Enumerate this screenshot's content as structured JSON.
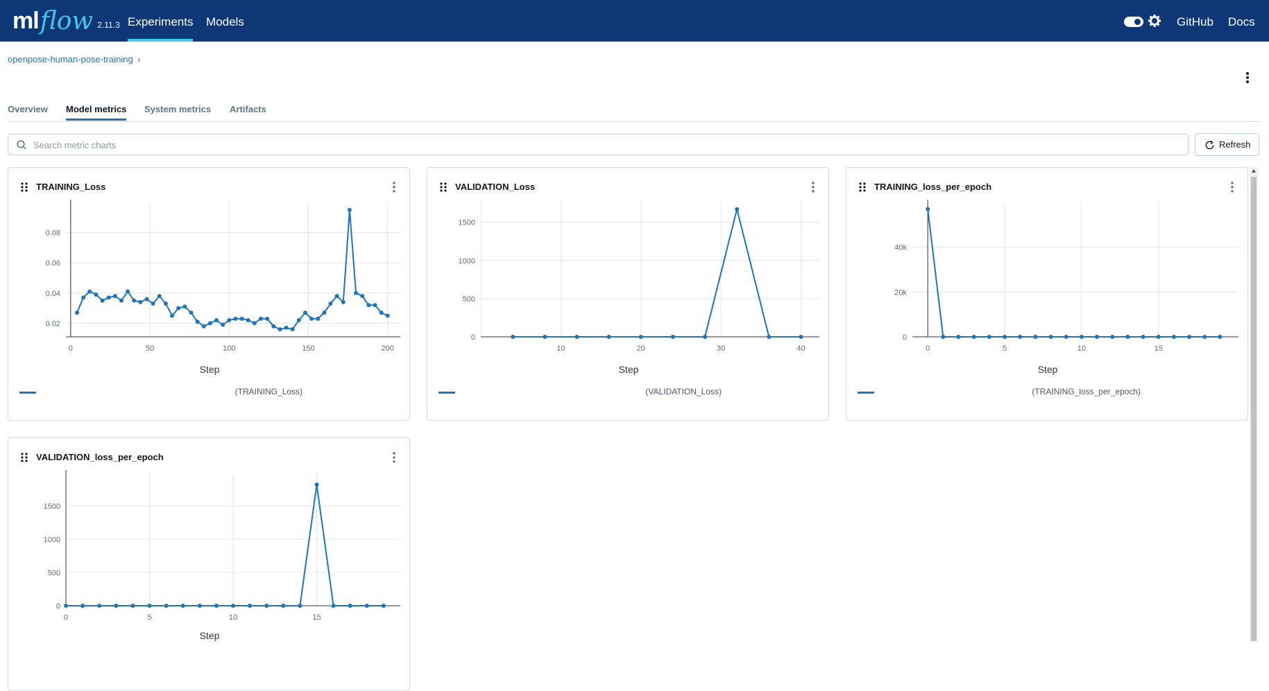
{
  "header": {
    "logo_ml": "ml",
    "logo_flow": "flow",
    "version": "2.11.3",
    "nav": [
      {
        "label": "Experiments",
        "active": true
      },
      {
        "label": "Models",
        "active": false
      }
    ],
    "github": "GitHub",
    "docs": "Docs",
    "theme_toggle_icon": "toggle-icon",
    "settings_icon": "gear-icon",
    "colors": {
      "background": "#0e3778",
      "accent": "#43c9ed"
    }
  },
  "breadcrumb": {
    "experiment": "openpose-human-pose-training",
    "separator": "›"
  },
  "tabs": [
    {
      "label": "Overview",
      "active": false
    },
    {
      "label": "Model metrics",
      "active": true
    },
    {
      "label": "System metrics",
      "active": false
    },
    {
      "label": "Artifacts",
      "active": false
    }
  ],
  "search": {
    "placeholder": "Search metric charts",
    "value": ""
  },
  "refresh_label": "Refresh",
  "line_color": "#2272b4",
  "chart_data": [
    {
      "type": "line",
      "title": "TRAINING_Loss",
      "xlabel": "Step",
      "ylabel": "",
      "legend": "(TRAINING_Loss)",
      "xlim": [
        -3,
        208
      ],
      "ylim": [
        0.011,
        0.1
      ],
      "xticks": [
        "0",
        "50",
        "100",
        "150",
        "200"
      ],
      "xtick_values": [
        0,
        50,
        100,
        150,
        200
      ],
      "yticks": [
        "0.02",
        "0.04",
        "0.06",
        "0.08"
      ],
      "ytick_values": [
        0.02,
        0.04,
        0.06,
        0.08
      ],
      "x": [
        4,
        8,
        12,
        16,
        20,
        24,
        28,
        32,
        36,
        40,
        44,
        48,
        52,
        56,
        60,
        64,
        68,
        72,
        76,
        80,
        84,
        88,
        92,
        96,
        100,
        104,
        108,
        112,
        116,
        120,
        124,
        128,
        132,
        136,
        140,
        144,
        148,
        152,
        156,
        160,
        164,
        168,
        172,
        176,
        180,
        184,
        188,
        192,
        196,
        200
      ],
      "y": [
        0.027,
        0.037,
        0.041,
        0.039,
        0.035,
        0.037,
        0.038,
        0.035,
        0.041,
        0.035,
        0.034,
        0.036,
        0.033,
        0.038,
        0.033,
        0.025,
        0.03,
        0.031,
        0.027,
        0.021,
        0.018,
        0.02,
        0.022,
        0.019,
        0.022,
        0.023,
        0.023,
        0.022,
        0.02,
        0.023,
        0.023,
        0.018,
        0.016,
        0.017,
        0.016,
        0.022,
        0.027,
        0.023,
        0.023,
        0.027,
        0.033,
        0.038,
        0.034,
        0.095,
        0.04,
        0.038,
        0.032,
        0.032,
        0.027,
        0.025
      ]
    },
    {
      "type": "line",
      "title": "VALIDATION_Loss",
      "xlabel": "Step",
      "ylabel": "",
      "legend": "(VALIDATION_Loss)",
      "xlim": [
        0,
        42.3
      ],
      "ylim": [
        0,
        1760
      ],
      "xticks": [
        "10",
        "20",
        "30",
        "40"
      ],
      "xtick_values": [
        10,
        20,
        30,
        40
      ],
      "yticks": [
        "0",
        "500",
        "1000",
        "1500"
      ],
      "ytick_values": [
        0,
        500,
        1000,
        1500
      ],
      "x": [
        4,
        8,
        12,
        16,
        20,
        24,
        28,
        32,
        36,
        40
      ],
      "y": [
        0,
        0,
        0,
        0,
        0,
        0,
        0,
        1670,
        0,
        0
      ]
    },
    {
      "type": "line",
      "title": "TRAINING_loss_per_epoch",
      "xlabel": "Step",
      "ylabel": "",
      "legend": "(TRAINING_loss_per_epoch)",
      "xlim": [
        -1,
        20.2
      ],
      "ylim": [
        0,
        60000
      ],
      "xticks": [
        "0",
        "5",
        "10",
        "15"
      ],
      "xtick_values": [
        0,
        5,
        10,
        15
      ],
      "yticks": [
        "0",
        "20k",
        "40k"
      ],
      "ytick_values": [
        0,
        20000,
        40000
      ],
      "x": [
        0,
        1,
        2,
        3,
        4,
        5,
        6,
        7,
        8,
        9,
        10,
        11,
        12,
        13,
        14,
        15,
        16,
        17,
        18,
        19
      ],
      "y": [
        57000,
        0,
        0,
        0,
        0,
        0,
        0,
        0,
        0,
        0,
        0,
        0,
        0,
        0,
        0,
        0,
        0,
        0,
        0,
        0
      ]
    },
    {
      "type": "line",
      "title": "VALIDATION_loss_per_epoch",
      "xlabel": "Step",
      "ylabel": "",
      "legend": "(VALIDATION_loss_per_epoch)",
      "xlim": [
        0,
        20
      ],
      "ylim": [
        0,
        2000
      ],
      "xticks": [
        "0",
        "5",
        "10",
        "15"
      ],
      "xtick_values": [
        0,
        5,
        10,
        15
      ],
      "yticks": [
        "0",
        "500",
        "1000",
        "1500"
      ],
      "ytick_values": [
        0,
        500,
        1000,
        1500
      ],
      "x": [
        0,
        1,
        2,
        3,
        4,
        5,
        6,
        7,
        8,
        9,
        10,
        11,
        12,
        13,
        14,
        15,
        16,
        17,
        18,
        19
      ],
      "y": [
        0,
        0,
        0,
        0,
        0,
        0,
        0,
        0,
        0,
        0,
        0,
        0,
        0,
        0,
        0,
        1820,
        0,
        0,
        0,
        0
      ]
    }
  ]
}
